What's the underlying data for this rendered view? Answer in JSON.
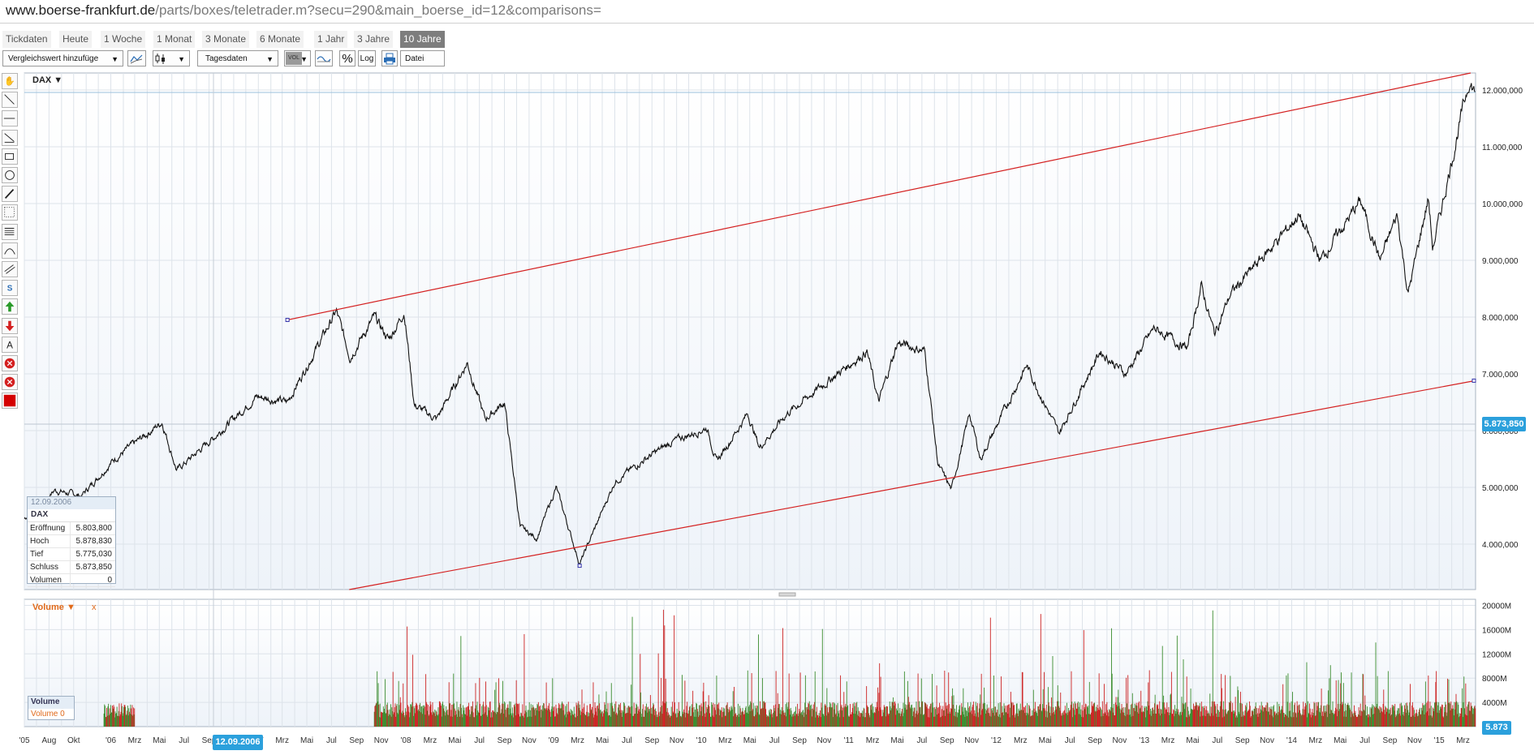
{
  "browser": {
    "url_host": "www.boerse-frankfurt.de",
    "url_path": "/parts/boxes/teletrader.m?secu=290&main_boerse_id=12&comparisons="
  },
  "tabs": [
    {
      "label": "Tickdaten",
      "active": false
    },
    {
      "label": "Heute",
      "active": false
    },
    {
      "label": "1 Woche",
      "active": false
    },
    {
      "label": "1 Monat",
      "active": false
    },
    {
      "label": "3 Monate",
      "active": false
    },
    {
      "label": "6 Monate",
      "active": false
    },
    {
      "label": "1 Jahr",
      "active": false
    },
    {
      "label": "3 Jahre",
      "active": false
    },
    {
      "label": "10 Jahre",
      "active": true
    }
  ],
  "toolbar": {
    "compare_label": "Vergleichswert hinzufüge",
    "interval_label": "Tagesdaten",
    "vol_label": "VOL",
    "percent_label": "%",
    "log_label": "Log",
    "file_label": "Datei"
  },
  "left_tools": [
    "hand-icon",
    "line-icon",
    "horizontal-line-icon",
    "trend-line-icon",
    "rectangle-icon",
    "ellipse-icon",
    "pencil-icon",
    "fibonacci-icon",
    "grid-icon",
    "arc-icon",
    "channel-icon",
    "s-icon",
    "arrow-up-icon",
    "arrow-down-icon",
    "text-icon",
    "delete-icon",
    "delete-all-icon",
    "color-icon"
  ],
  "colors": {
    "price_line": "#111111",
    "trend_line": "#d42020",
    "volume_up": "#3a8c2e",
    "volume_down": "#cc2222",
    "accent": "#2ba0dc",
    "grid": "#dde3ea"
  },
  "chart_data": [
    {
      "type": "line",
      "series": [
        {
          "name": "DAX"
        }
      ],
      "x_ticks": [
        "'05",
        "Aug",
        "Okt",
        "'06",
        "Mrz",
        "Mai",
        "Jul",
        "Sep",
        "Nov",
        "'07",
        "Mrz",
        "Mai",
        "Jul",
        "Sep",
        "Nov",
        "'08",
        "Mrz",
        "Mai",
        "Jul",
        "Sep",
        "Nov",
        "'09",
        "Mrz",
        "Mai",
        "Jul",
        "Sep",
        "Nov",
        "'10",
        "Mrz",
        "Mai",
        "Jul",
        "Sep",
        "Nov",
        "'11",
        "Mrz",
        "Mai",
        "Jul",
        "Sep",
        "Nov",
        "'12",
        "Mrz",
        "Mai",
        "Jul",
        "Sep",
        "Nov",
        "'13",
        "Mrz",
        "Mai",
        "Jul",
        "Sep",
        "Nov",
        "'14",
        "Mrz",
        "Mai",
        "Jul",
        "Sep",
        "Nov",
        "'15",
        "Mrz"
      ],
      "date_range": [
        "2005-06-01",
        "2015-04-01"
      ],
      "y_ticks": [
        "4.000,000",
        "5.000,000",
        "6.000,000",
        "7.000,000",
        "8.000,000",
        "9.000,000",
        "10.000,000",
        "11.000,000",
        "12.000,000"
      ],
      "ylim": [
        3200,
        12300
      ],
      "points": [
        [
          "2005-06-01",
          4450
        ],
        [
          "2005-08-15",
          4950
        ],
        [
          "2005-10-20",
          4850
        ],
        [
          "2006-01-10",
          5500
        ],
        [
          "2006-05-08",
          6150
        ],
        [
          "2006-06-13",
          5300
        ],
        [
          "2006-09-12",
          5874
        ],
        [
          "2006-12-28",
          6600
        ],
        [
          "2007-03-14",
          6500
        ],
        [
          "2007-07-13",
          8100
        ],
        [
          "2007-08-16",
          7300
        ],
        [
          "2007-10-15",
          8000
        ],
        [
          "2007-11-20",
          7600
        ],
        [
          "2007-12-28",
          8100
        ],
        [
          "2008-01-22",
          6450
        ],
        [
          "2008-03-17",
          6200
        ],
        [
          "2008-06-01",
          7200
        ],
        [
          "2008-07-15",
          6200
        ],
        [
          "2008-09-01",
          6500
        ],
        [
          "2008-10-10",
          4300
        ],
        [
          "2008-11-20",
          4100
        ],
        [
          "2009-01-07",
          5000
        ],
        [
          "2009-03-06",
          3650
        ],
        [
          "2009-06-01",
          5100
        ],
        [
          "2009-08-15",
          5500
        ],
        [
          "2009-10-20",
          5800
        ],
        [
          "2010-01-15",
          6050
        ],
        [
          "2010-02-08",
          5450
        ],
        [
          "2010-04-26",
          6300
        ],
        [
          "2010-05-25",
          5700
        ],
        [
          "2010-08-01",
          6300
        ],
        [
          "2010-11-15",
          6900
        ],
        [
          "2011-02-15",
          7400
        ],
        [
          "2011-03-16",
          6500
        ],
        [
          "2011-05-02",
          7550
        ],
        [
          "2011-07-08",
          7400
        ],
        [
          "2011-08-10",
          5400
        ],
        [
          "2011-09-12",
          4960
        ],
        [
          "2011-10-27",
          6300
        ],
        [
          "2011-11-23",
          5500
        ],
        [
          "2012-03-16",
          7150
        ],
        [
          "2012-06-04",
          5950
        ],
        [
          "2012-09-14",
          7400
        ],
        [
          "2012-11-16",
          7000
        ],
        [
          "2013-01-25",
          7800
        ],
        [
          "2013-04-18",
          7450
        ],
        [
          "2013-05-22",
          8550
        ],
        [
          "2013-06-24",
          7700
        ],
        [
          "2013-08-02",
          8400
        ],
        [
          "2013-12-27",
          9600
        ],
        [
          "2014-01-17",
          9800
        ],
        [
          "2014-03-13",
          9000
        ],
        [
          "2014-06-20",
          10050
        ],
        [
          "2014-08-08",
          9000
        ],
        [
          "2014-09-19",
          9800
        ],
        [
          "2014-10-16",
          8400
        ],
        [
          "2014-12-05",
          10100
        ],
        [
          "2014-12-16",
          9200
        ],
        [
          "2015-03-16",
          12170
        ],
        [
          "2015-03-31",
          11950
        ]
      ],
      "last_value_label": "5.873,850",
      "trend_lines": [
        {
          "from": [
            "2007-03-14",
            7950
          ],
          "to": [
            "2015-03-20",
            12300
          ]
        },
        {
          "from": [
            "2007-08-14",
            3200
          ],
          "to": [
            "2015-03-31",
            6880
          ]
        }
      ],
      "legend": "DAX",
      "info_box": {
        "date": "12.09.2006",
        "name": "DAX",
        "rows": [
          {
            "label": "Eröffnung",
            "value": "5.803,800"
          },
          {
            "label": "Hoch",
            "value": "5.878,830"
          },
          {
            "label": "Tief",
            "value": "5.775,030"
          },
          {
            "label": "Schluss",
            "value": "5.873,850"
          },
          {
            "label": "Volumen",
            "value": "0"
          }
        ]
      },
      "grid": true
    },
    {
      "type": "bar",
      "series": [
        {
          "name": "Volume"
        }
      ],
      "legend": "Volume",
      "legend_suffix": "x",
      "y_ticks": [
        "4000M",
        "8000M",
        "12000M",
        "16000M",
        "20000M"
      ],
      "ylim": [
        0,
        21000
      ],
      "segments": [
        {
          "from": "2005-12-15",
          "to": "2006-03-01",
          "typical": 2800,
          "max": 6500
        },
        {
          "from": "2007-10-15",
          "to": "2015-04-01",
          "typical": 3000,
          "max": 20000
        }
      ],
      "last_value_label": "5.873",
      "cursor_label": "12.09.2006",
      "box_title": "Volume",
      "box_sub": "Volume 0"
    }
  ]
}
